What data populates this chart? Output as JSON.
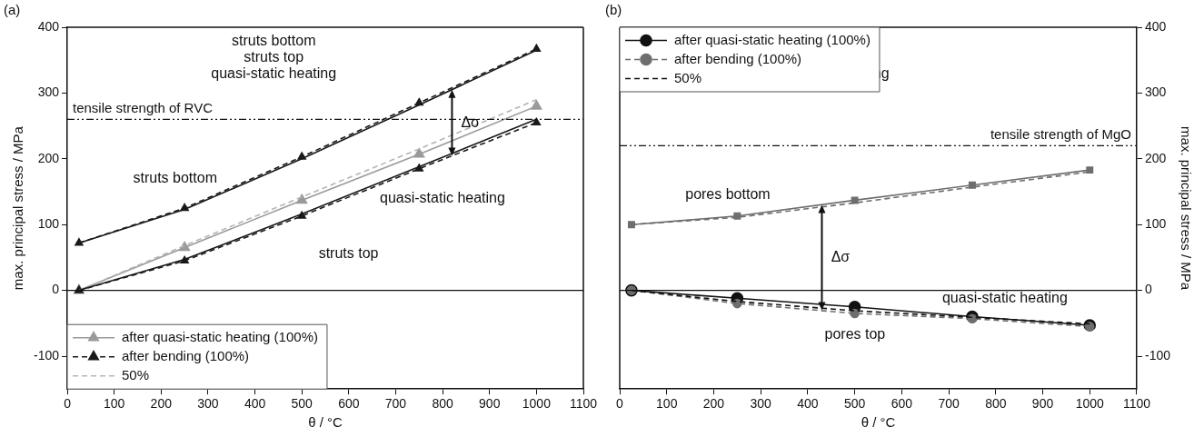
{
  "chart_data": [
    {
      "type": "line",
      "title": "(a)",
      "xlabel": "θ / °C",
      "ylabel": "max. principal stress / MPa",
      "x": [
        25,
        250,
        500,
        750,
        1000
      ],
      "xlim": [
        0,
        1100
      ],
      "xticks": [
        0,
        100,
        200,
        300,
        400,
        500,
        600,
        700,
        800,
        900,
        1000,
        1100
      ],
      "ylim": [
        -150,
        400
      ],
      "yticks": [
        -100,
        0,
        100,
        200,
        300,
        400
      ],
      "legend": "bottom left",
      "series": [
        {
          "name": "after quasi-static heating (100%)",
          "color": "#9a9a9a",
          "line_style": "solid",
          "marker": "triangle",
          "values": [
            0,
            65,
            137,
            207,
            280
          ]
        },
        {
          "name": "after bending (100%)",
          "color": "#1a1a1a",
          "line_style": "dashed",
          "marker": "triangle",
          "values": [
            72,
            125,
            203,
            285,
            367
          ]
        },
        {
          "color": "#1a1a1a",
          "line_style": "dashed",
          "marker": "triangle",
          "values": [
            0,
            45,
            113,
            185,
            255
          ]
        },
        {
          "name": "50%",
          "color": "#b5b5b5",
          "line_style": "dashed",
          "marker": "none",
          "values": [
            0,
            68,
            142,
            215,
            290
          ]
        },
        {
          "color": "#1a1a1a",
          "line_style": "solid",
          "marker": "none",
          "values": [
            72,
            123,
            200,
            282,
            365
          ]
        },
        {
          "color": "#1a1a1a",
          "line_style": "solid",
          "marker": "none",
          "values": [
            0,
            47,
            116,
            188,
            260
          ]
        }
      ],
      "ref_lines": [
        {
          "axis": "y",
          "value": 260,
          "label": "tensile strength of RVC",
          "color": "#111111",
          "line_style": "dotted"
        },
        {
          "axis": "y",
          "value": 0,
          "color": "#111111",
          "line_style": "solid"
        }
      ],
      "annotations": [
        "struts bottom",
        "struts top",
        "quasi-static heating",
        {
          "text": "Δσ",
          "x": 820,
          "y": 305
        }
      ]
    },
    {
      "type": "line",
      "title": "(b)",
      "xlabel": "θ / °C",
      "y2label": "max. principal stress / MPa",
      "x": [
        25,
        250,
        500,
        750,
        1000
      ],
      "xlim": [
        0,
        1100
      ],
      "xticks": [
        0,
        100,
        200,
        300,
        400,
        500,
        600,
        700,
        800,
        900,
        1000,
        1100
      ],
      "y2lim": [
        -150,
        400
      ],
      "y2ticks": [
        -100,
        0,
        100,
        200,
        300,
        400
      ],
      "legend": "top left",
      "series": [
        {
          "name": "after quasi-static heating (100%)",
          "color": "#111111",
          "line_style": "solid",
          "marker": "circle",
          "axis": "y2",
          "values": [
            0,
            -12,
            -25,
            -40,
            -53
          ]
        },
        {
          "name": "after bending (100%)",
          "color": "#6e6e6e",
          "line_style": "dashed",
          "marker": "circle",
          "axis": "y2",
          "values": [
            0,
            -20,
            -35,
            -43,
            -55
          ]
        },
        {
          "color": "#6e6e6e",
          "line_style": "solid",
          "marker": "square",
          "axis": "y2",
          "values": [
            100,
            113,
            137,
            160,
            183
          ]
        },
        {
          "name": "50%",
          "color": "#111111",
          "line_style": "dashed",
          "marker": "none",
          "axis": "y2",
          "values": [
            0,
            -17,
            -31,
            -41,
            -51
          ]
        },
        {
          "color": "#6e6e6e",
          "line_style": "dashed",
          "marker": "none",
          "axis": "y2",
          "values": [
            100,
            111,
            133,
            157,
            180
          ]
        }
      ],
      "ref_lines": [
        {
          "axis": "y2",
          "value": 220,
          "label": "tensile strength of MgO",
          "color": "#111111",
          "line_style": "dotted"
        },
        {
          "axis": "y2",
          "value": 0,
          "color": "#111111",
          "line_style": "solid"
        }
      ],
      "annotations": [
        "pores bottom",
        "pores top",
        "quasi-static heating",
        "Δσ"
      ]
    }
  ]
}
